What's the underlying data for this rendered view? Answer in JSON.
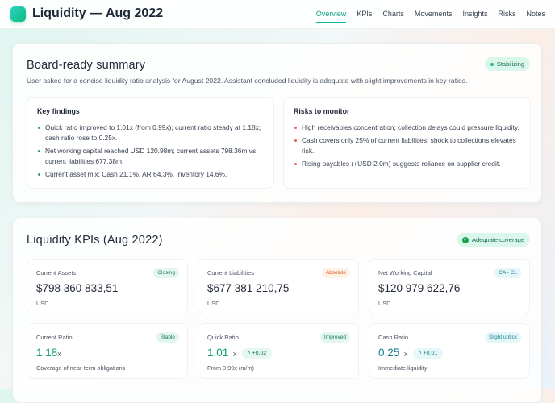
{
  "header": {
    "title": "Liquidity — Aug 2022",
    "nav": [
      "Overview",
      "KPIs",
      "Charts",
      "Movements",
      "Insights",
      "Risks",
      "Notes"
    ],
    "active": "Overview"
  },
  "summary": {
    "title": "Board-ready summary",
    "badge": "Stabilizing",
    "description": "User asked for a concise liquidity ratio analysis for August 2022. Assistant concluded liquidity is adequate with slight improvements in key ratios.",
    "findings": {
      "title": "Key findings",
      "items": [
        "Quick ratio improved to 1.01x (from 0.99x); current ratio steady at 1.18x; cash ratio rose to 0.25x.",
        "Net working capital reached USD 120.98m; current assets 798.36m vs current liabilities 677.38m.",
        "Current asset mix: Cash 21.1%, AR 64.3%, Inventory 14.6%."
      ]
    },
    "risks": {
      "title": "Risks to monitor",
      "items": [
        "High receivables concentration; collection delays could pressure liquidity.",
        "Cash covers only 25% of current liabilities; shock to collections elevates risk.",
        "Rising payables (+USD 2.0m) suggests reliance on supplier credit."
      ]
    }
  },
  "kpis": {
    "title": "Liquidity KPIs (Aug 2022)",
    "badge": "Adequate coverage",
    "cards": [
      {
        "label": "Current Assets",
        "badge": "Closing",
        "value": "$798 360 833,51",
        "sub": "USD"
      },
      {
        "label": "Current Liabilities",
        "badge": "Absolute",
        "value": "$677 381 210,75",
        "sub": "USD"
      },
      {
        "label": "Net Working Capital",
        "badge": "CA - CL",
        "value": "$120 979 622,76",
        "sub": "USD"
      },
      {
        "label": "Current Ratio",
        "badge": "Stable",
        "value": "1.18",
        "suffix": "x",
        "sub": "Coverage of near-term obligations"
      },
      {
        "label": "Quick Ratio",
        "badge": "Improved",
        "value": "1.01",
        "suffix": "x",
        "delta": "+0.02",
        "sub": "From 0.99x (m/m)"
      },
      {
        "label": "Cash Ratio",
        "badge": "Slight uptick",
        "value": "0.25",
        "suffix": "x",
        "delta": "+0.01",
        "sub": "Immediate liquidity"
      }
    ]
  }
}
